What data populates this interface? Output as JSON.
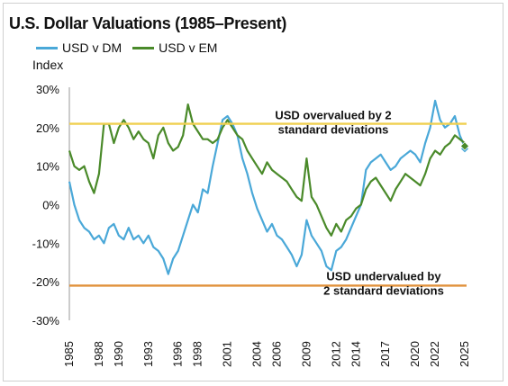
{
  "chart_data": {
    "type": "line",
    "title": "U.S. Dollar Valuations (1985–Present)",
    "ylabel": "Index",
    "xlabel": "",
    "ylim": [
      -30,
      30
    ],
    "xlim": [
      1985,
      2025
    ],
    "yticks": [
      -30,
      -20,
      -10,
      0,
      10,
      20,
      30
    ],
    "ytick_labels": [
      "-30%",
      "-20%",
      "-10%",
      "0%",
      "10%",
      "20%",
      "30%"
    ],
    "xticks": [
      1985,
      1988,
      1990,
      1993,
      1996,
      1998,
      2001,
      2004,
      2006,
      2009,
      2012,
      2014,
      2017,
      2020,
      2022,
      2025
    ],
    "xtick_labels": [
      "1985",
      "1988",
      "1990",
      "1993",
      "1996",
      "1998",
      "2001",
      "2004",
      "2006",
      "2009",
      "2012",
      "2014",
      "2017",
      "2020",
      "2022",
      "2025"
    ],
    "legend_position": "top-left",
    "grid": false,
    "series": [
      {
        "name": "USD v DM",
        "color": "#4aa8d8",
        "points": [
          [
            1985.0,
            6
          ],
          [
            1985.5,
            0
          ],
          [
            1986.0,
            -4
          ],
          [
            1986.5,
            -6
          ],
          [
            1987.0,
            -7
          ],
          [
            1987.5,
            -9
          ],
          [
            1988.0,
            -8
          ],
          [
            1988.5,
            -10
          ],
          [
            1989.0,
            -6
          ],
          [
            1989.5,
            -5
          ],
          [
            1990.0,
            -8
          ],
          [
            1990.5,
            -9
          ],
          [
            1991.0,
            -6
          ],
          [
            1991.5,
            -9
          ],
          [
            1992.0,
            -8
          ],
          [
            1992.5,
            -10
          ],
          [
            1993.0,
            -8
          ],
          [
            1993.5,
            -11
          ],
          [
            1994.0,
            -12
          ],
          [
            1994.5,
            -14
          ],
          [
            1995.0,
            -18
          ],
          [
            1995.5,
            -14
          ],
          [
            1996.0,
            -12
          ],
          [
            1996.5,
            -8
          ],
          [
            1997.0,
            -4
          ],
          [
            1997.5,
            0
          ],
          [
            1998.0,
            -2
          ],
          [
            1998.5,
            4
          ],
          [
            1999.0,
            3
          ],
          [
            1999.5,
            10
          ],
          [
            2000.0,
            16
          ],
          [
            2000.5,
            22
          ],
          [
            2001.0,
            23
          ],
          [
            2001.5,
            21
          ],
          [
            2002.0,
            18
          ],
          [
            2002.5,
            12
          ],
          [
            2003.0,
            8
          ],
          [
            2003.5,
            3
          ],
          [
            2004.0,
            -1
          ],
          [
            2004.5,
            -4
          ],
          [
            2005.0,
            -7
          ],
          [
            2005.5,
            -5
          ],
          [
            2006.0,
            -8
          ],
          [
            2006.5,
            -9
          ],
          [
            2007.0,
            -11
          ],
          [
            2007.5,
            -13
          ],
          [
            2008.0,
            -16
          ],
          [
            2008.5,
            -13
          ],
          [
            2009.0,
            -4
          ],
          [
            2009.5,
            -8
          ],
          [
            2010.0,
            -10
          ],
          [
            2010.5,
            -12
          ],
          [
            2011.0,
            -16
          ],
          [
            2011.5,
            -17
          ],
          [
            2012.0,
            -12
          ],
          [
            2012.5,
            -11
          ],
          [
            2013.0,
            -9
          ],
          [
            2013.5,
            -6
          ],
          [
            2014.0,
            -3
          ],
          [
            2014.5,
            0
          ],
          [
            2015.0,
            9
          ],
          [
            2015.5,
            11
          ],
          [
            2016.0,
            12
          ],
          [
            2016.5,
            13
          ],
          [
            2017.0,
            11
          ],
          [
            2017.5,
            9
          ],
          [
            2018.0,
            10
          ],
          [
            2018.5,
            12
          ],
          [
            2019.0,
            13
          ],
          [
            2019.5,
            14
          ],
          [
            2020.0,
            13
          ],
          [
            2020.5,
            11
          ],
          [
            2021.0,
            16
          ],
          [
            2021.5,
            20
          ],
          [
            2022.0,
            27
          ],
          [
            2022.5,
            22
          ],
          [
            2023.0,
            20
          ],
          [
            2023.5,
            21
          ],
          [
            2024.0,
            23
          ],
          [
            2024.5,
            18
          ],
          [
            2025.0,
            15
          ]
        ]
      },
      {
        "name": "USD v EM",
        "color": "#4a8a2a",
        "points": [
          [
            1985.0,
            14
          ],
          [
            1985.5,
            10
          ],
          [
            1986.0,
            9
          ],
          [
            1986.5,
            10
          ],
          [
            1987.0,
            6
          ],
          [
            1987.5,
            3
          ],
          [
            1988.0,
            8
          ],
          [
            1988.5,
            21
          ],
          [
            1989.0,
            21
          ],
          [
            1989.5,
            16
          ],
          [
            1990.0,
            20
          ],
          [
            1990.5,
            22
          ],
          [
            1991.0,
            20
          ],
          [
            1991.5,
            17
          ],
          [
            1992.0,
            19
          ],
          [
            1992.5,
            17
          ],
          [
            1993.0,
            16
          ],
          [
            1993.5,
            12
          ],
          [
            1994.0,
            18
          ],
          [
            1994.5,
            20
          ],
          [
            1995.0,
            16
          ],
          [
            1995.5,
            14
          ],
          [
            1996.0,
            15
          ],
          [
            1996.5,
            18
          ],
          [
            1997.0,
            26
          ],
          [
            1997.5,
            21
          ],
          [
            1998.0,
            19
          ],
          [
            1998.5,
            17
          ],
          [
            1999.0,
            17
          ],
          [
            1999.5,
            16
          ],
          [
            2000.0,
            17
          ],
          [
            2000.5,
            20
          ],
          [
            2001.0,
            22
          ],
          [
            2001.5,
            20
          ],
          [
            2002.0,
            18
          ],
          [
            2002.5,
            17
          ],
          [
            2003.0,
            14
          ],
          [
            2003.5,
            12
          ],
          [
            2004.0,
            10
          ],
          [
            2004.5,
            8
          ],
          [
            2005.0,
            11
          ],
          [
            2005.5,
            9
          ],
          [
            2006.0,
            8
          ],
          [
            2006.5,
            7
          ],
          [
            2007.0,
            6
          ],
          [
            2007.5,
            4
          ],
          [
            2008.0,
            2
          ],
          [
            2008.5,
            1
          ],
          [
            2009.0,
            12
          ],
          [
            2009.5,
            2
          ],
          [
            2010.0,
            0
          ],
          [
            2010.5,
            -3
          ],
          [
            2011.0,
            -6
          ],
          [
            2011.5,
            -8
          ],
          [
            2012.0,
            -5
          ],
          [
            2012.5,
            -7
          ],
          [
            2013.0,
            -4
          ],
          [
            2013.5,
            -3
          ],
          [
            2014.0,
            -1
          ],
          [
            2014.5,
            0
          ],
          [
            2015.0,
            4
          ],
          [
            2015.5,
            6
          ],
          [
            2016.0,
            7
          ],
          [
            2016.5,
            5
          ],
          [
            2017.0,
            3
          ],
          [
            2017.5,
            1
          ],
          [
            2018.0,
            4
          ],
          [
            2018.5,
            6
          ],
          [
            2019.0,
            8
          ],
          [
            2019.5,
            7
          ],
          [
            2020.0,
            6
          ],
          [
            2020.5,
            5
          ],
          [
            2021.0,
            8
          ],
          [
            2021.5,
            12
          ],
          [
            2022.0,
            14
          ],
          [
            2022.5,
            13
          ],
          [
            2023.0,
            15
          ],
          [
            2023.5,
            16
          ],
          [
            2024.0,
            18
          ],
          [
            2024.5,
            17
          ],
          [
            2025.0,
            16
          ]
        ]
      }
    ],
    "reference_lines": [
      {
        "label": "USD overvalued by 2 standard deviations",
        "label_lines": [
          "USD overvalued by 2",
          "standard deviations"
        ],
        "value": 21,
        "color": "#f0d050"
      },
      {
        "label": "USD undervalued by 2 standard deviations",
        "label_lines": [
          "USD undervalued by",
          "2 standard deviations"
        ],
        "value": -21,
        "color": "#e0913a"
      }
    ],
    "end_markers": [
      {
        "series": "USD v DM",
        "x": 2025,
        "y": 14.5,
        "color": "#4aa8d8"
      },
      {
        "series": "USD v EM",
        "x": 2025,
        "y": 15.2,
        "color": "#4a8a2a"
      }
    ]
  }
}
